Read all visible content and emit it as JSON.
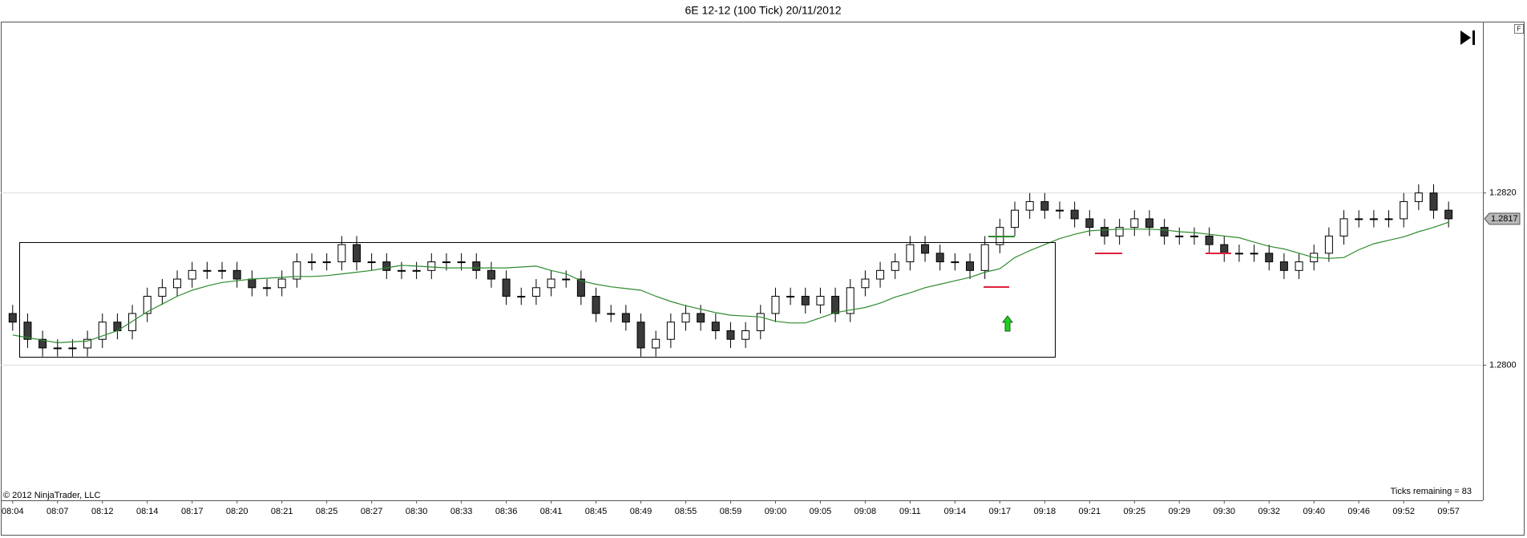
{
  "chart_data": {
    "type": "candlestick",
    "title": "6E 12-12 (100 Tick)  20/11/2012",
    "copyright": "© 2012 NinjaTrader, LLC",
    "status": "Ticks remaining = 83",
    "button": "F",
    "categories": [
      "08:04",
      null,
      null,
      "08:07",
      null,
      null,
      "08:12",
      null,
      null,
      "08:14",
      null,
      null,
      "08:17",
      null,
      null,
      "08:20",
      null,
      null,
      "08:21",
      null,
      null,
      "08:25",
      null,
      null,
      "08:27",
      null,
      null,
      "08:30",
      null,
      null,
      "08:33",
      null,
      null,
      "08:36",
      null,
      null,
      "08:41",
      null,
      null,
      "08:45",
      null,
      null,
      "08:49",
      null,
      null,
      "08:55",
      null,
      null,
      "08:59",
      null,
      null,
      "09:00",
      null,
      null,
      "09:05",
      null,
      null,
      "09:08",
      null,
      null,
      "09:11",
      null,
      null,
      "09:14",
      null,
      null,
      "09:17",
      null,
      null,
      "09:18",
      null,
      null,
      "09:21",
      null,
      null,
      "09:25",
      null,
      null,
      "09:29",
      null,
      null,
      "09:30",
      null,
      null,
      "09:32",
      null,
      null,
      "09:40",
      null,
      null,
      "09:46",
      null,
      null,
      "09:52",
      null,
      null,
      "09:57"
    ],
    "open": [
      1.2806,
      1.2805,
      1.2803,
      1.2802,
      1.2802,
      1.2802,
      1.2803,
      1.2805,
      1.2804,
      1.2806,
      1.2808,
      1.2809,
      1.281,
      1.2811,
      1.2811,
      1.2811,
      1.281,
      1.2809,
      1.2809,
      1.281,
      1.2812,
      1.2812,
      1.2812,
      1.2814,
      1.2812,
      1.2812,
      1.2811,
      1.2811,
      1.2811,
      1.2812,
      1.2812,
      1.2812,
      1.2811,
      1.281,
      1.2808,
      1.2808,
      1.2809,
      1.281,
      1.281,
      1.2808,
      1.2806,
      1.2806,
      1.2805,
      1.2802,
      1.2803,
      1.2805,
      1.2806,
      1.2805,
      1.2804,
      1.2803,
      1.2804,
      1.2806,
      1.2808,
      1.2808,
      1.2807,
      1.2808,
      1.2806,
      1.2809,
      1.281,
      1.2811,
      1.2812,
      1.2814,
      1.2813,
      1.2812,
      1.2812,
      1.2811,
      1.2814,
      1.2816,
      1.2818,
      1.2819,
      1.2818,
      1.2818,
      1.2817,
      1.2816,
      1.2815,
      1.2816,
      1.2817,
      1.2816,
      1.2815,
      1.2815,
      1.2815,
      1.2814,
      1.2813,
      1.2813,
      1.2813,
      1.2812,
      1.2811,
      1.2812,
      1.2813,
      1.2815,
      1.2817,
      1.2817,
      1.2817,
      1.2817,
      1.2819,
      1.282,
      1.2818
    ],
    "high": [
      1.2807,
      1.2806,
      1.2804,
      1.2803,
      1.2803,
      1.2804,
      1.2806,
      1.2806,
      1.2807,
      1.2809,
      1.281,
      1.2811,
      1.2812,
      1.2812,
      1.2812,
      1.2812,
      1.2811,
      1.281,
      1.2811,
      1.2813,
      1.2813,
      1.2813,
      1.2815,
      1.2815,
      1.2813,
      1.2813,
      1.2812,
      1.2812,
      1.2813,
      1.2813,
      1.2813,
      1.2813,
      1.2812,
      1.2811,
      1.2809,
      1.281,
      1.2811,
      1.2811,
      1.2811,
      1.2809,
      1.2807,
      1.2807,
      1.2806,
      1.2804,
      1.2806,
      1.2807,
      1.2807,
      1.2806,
      1.2805,
      1.2805,
      1.2807,
      1.2809,
      1.2809,
      1.2809,
      1.2809,
      1.2809,
      1.281,
      1.2811,
      1.2812,
      1.2813,
      1.2815,
      1.2815,
      1.2814,
      1.2813,
      1.2813,
      1.2815,
      1.2817,
      1.2819,
      1.282,
      1.282,
      1.2819,
      1.2819,
      1.2818,
      1.2817,
      1.2817,
      1.2818,
      1.2818,
      1.2817,
      1.2816,
      1.2816,
      1.2816,
      1.2815,
      1.2814,
      1.2814,
      1.2814,
      1.2813,
      1.2813,
      1.2814,
      1.2816,
      1.2818,
      1.2818,
      1.2818,
      1.2818,
      1.282,
      1.2821,
      1.2821,
      1.2819
    ],
    "low": [
      1.2804,
      1.2802,
      1.2801,
      1.2801,
      1.2801,
      1.2801,
      1.2802,
      1.2803,
      1.2803,
      1.2805,
      1.2807,
      1.2808,
      1.2809,
      1.281,
      1.281,
      1.2809,
      1.2808,
      1.2808,
      1.2808,
      1.2809,
      1.2811,
      1.2811,
      1.2811,
      1.2811,
      1.2811,
      1.281,
      1.281,
      1.281,
      1.281,
      1.2811,
      1.2811,
      1.281,
      1.2809,
      1.2807,
      1.2807,
      1.2807,
      1.2808,
      1.2809,
      1.2807,
      1.2805,
      1.2805,
      1.2804,
      1.2801,
      1.2801,
      1.2802,
      1.2804,
      1.2804,
      1.2803,
      1.2802,
      1.2802,
      1.2803,
      1.2805,
      1.2807,
      1.2806,
      1.2806,
      1.2805,
      1.2805,
      1.2808,
      1.2809,
      1.281,
      1.2811,
      1.2812,
      1.2811,
      1.2811,
      1.281,
      1.281,
      1.2813,
      1.2815,
      1.2817,
      1.2817,
      1.2817,
      1.2816,
      1.2815,
      1.2814,
      1.2814,
      1.2815,
      1.2815,
      1.2814,
      1.2814,
      1.2814,
      1.2813,
      1.2812,
      1.2812,
      1.2812,
      1.2811,
      1.281,
      1.281,
      1.2811,
      1.2812,
      1.2814,
      1.2816,
      1.2816,
      1.2816,
      1.2816,
      1.2818,
      1.2817,
      1.2816
    ],
    "close": [
      1.2805,
      1.2803,
      1.2802,
      1.2802,
      1.2802,
      1.2803,
      1.2805,
      1.2804,
      1.2806,
      1.2808,
      1.2809,
      1.281,
      1.2811,
      1.2811,
      1.2811,
      1.281,
      1.2809,
      1.2809,
      1.281,
      1.2812,
      1.2812,
      1.2812,
      1.2814,
      1.2812,
      1.2812,
      1.2811,
      1.2811,
      1.2811,
      1.2812,
      1.2812,
      1.2812,
      1.2811,
      1.281,
      1.2808,
      1.2808,
      1.2809,
      1.281,
      1.281,
      1.2808,
      1.2806,
      1.2806,
      1.2805,
      1.2802,
      1.2803,
      1.2805,
      1.2806,
      1.2805,
      1.2804,
      1.2803,
      1.2804,
      1.2806,
      1.2808,
      1.2808,
      1.2807,
      1.2808,
      1.2806,
      1.2809,
      1.281,
      1.2811,
      1.2812,
      1.2814,
      1.2813,
      1.2812,
      1.2812,
      1.2811,
      1.2814,
      1.2816,
      1.2818,
      1.2819,
      1.2818,
      1.2818,
      1.2817,
      1.2816,
      1.2815,
      1.2816,
      1.2817,
      1.2816,
      1.2815,
      1.2815,
      1.2815,
      1.2814,
      1.2813,
      1.2813,
      1.2813,
      1.2812,
      1.2811,
      1.2812,
      1.2813,
      1.2815,
      1.2817,
      1.2817,
      1.2817,
      1.2817,
      1.2819,
      1.282,
      1.2818,
      1.2817
    ],
    "up_color": "#ffffff",
    "down_color": "#3a3a3a",
    "wick_color": "#000000",
    "ma": {
      "color": "#2e8b2e",
      "values": [
        1.28035,
        1.28032,
        1.28029,
        1.28026,
        1.28027,
        1.28028,
        1.28034,
        1.2804,
        1.28051,
        1.28062,
        1.28071,
        1.2808,
        1.28087,
        1.28092,
        1.28096,
        1.28098,
        1.281,
        1.28101,
        1.28102,
        1.28103,
        1.28103,
        1.28104,
        1.28106,
        1.28108,
        1.2811,
        1.28113,
        1.28116,
        1.28115,
        1.28114,
        1.28113,
        1.28113,
        1.28113,
        1.28113,
        1.28113,
        1.28114,
        1.28115,
        1.2811,
        1.28106,
        1.28098,
        1.28094,
        1.28091,
        1.28089,
        1.28087,
        1.2808,
        1.28074,
        1.28069,
        1.28065,
        1.28061,
        1.28058,
        1.28057,
        1.28056,
        1.28051,
        1.28049,
        1.28049,
        1.28055,
        1.28061,
        1.28064,
        1.28067,
        1.28072,
        1.28079,
        1.28084,
        1.2809,
        1.28094,
        1.28098,
        1.28102,
        1.28108,
        1.28112,
        1.28125,
        1.28133,
        1.2814,
        1.28147,
        1.28152,
        1.28156,
        1.28157,
        1.28158,
        1.28158,
        1.28158,
        1.28157,
        1.28155,
        1.28154,
        1.28152,
        1.2815,
        1.28148,
        1.28143,
        1.28138,
        1.28135,
        1.2813,
        1.28125,
        1.28124,
        1.28125,
        1.28134,
        1.28141,
        1.28145,
        1.28149,
        1.28155,
        1.2816,
        1.28166
      ]
    },
    "ylim": [
      1.27843,
      1.28399
    ],
    "yticks": [
      {
        "value": 1.28,
        "label": "1.2800"
      },
      {
        "value": 1.282,
        "label": "1.2820"
      }
    ],
    "grid": true,
    "last_price": 1.2817
  }
}
